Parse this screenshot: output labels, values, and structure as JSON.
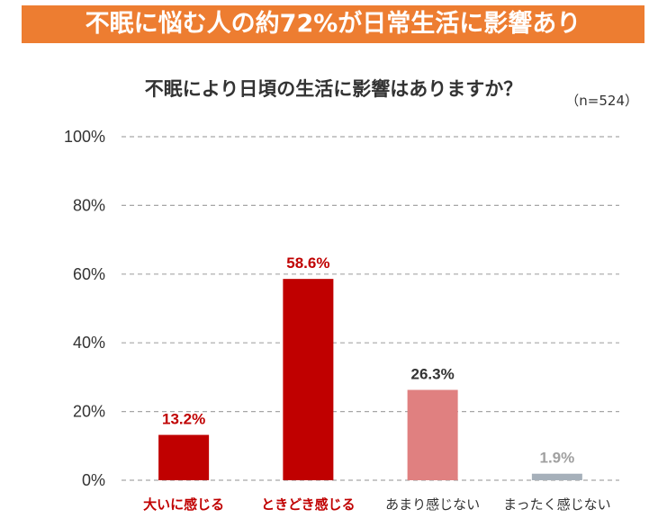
{
  "banner": {
    "text": "不眠に悩む人の約72%が日常生活に影響あり"
  },
  "chart_data": {
    "type": "bar",
    "title": "不眠により日頃の生活に影響はありますか？",
    "note": "（n=524）",
    "categories": [
      "大いに感じる",
      "ときどき感じる",
      "あまり感じない",
      "まったく感じない"
    ],
    "values": [
      13.2,
      58.6,
      26.3,
      1.9
    ],
    "value_labels": [
      "13.2%",
      "58.6%",
      "26.3%",
      "1.9%"
    ],
    "ylim": [
      0,
      100
    ],
    "yticks": [
      0,
      20,
      40,
      60,
      80,
      100
    ],
    "ytick_labels": [
      "0%",
      "20%",
      "40%",
      "60%",
      "80%",
      "100%"
    ],
    "grid": true,
    "xlabel": "",
    "ylabel": "",
    "bar_colors": [
      "#c00000",
      "#c00000",
      "#e08080",
      "#a6b0ba"
    ],
    "label_colors": [
      "#c00000",
      "#c00000",
      "#333333",
      "#a0a0a0"
    ],
    "category_label_colors": [
      "#c00000",
      "#c00000",
      "#333333",
      "#333333"
    ],
    "category_label_bold": [
      true,
      true,
      false,
      false
    ],
    "grid_color": "#a6a6a6"
  }
}
